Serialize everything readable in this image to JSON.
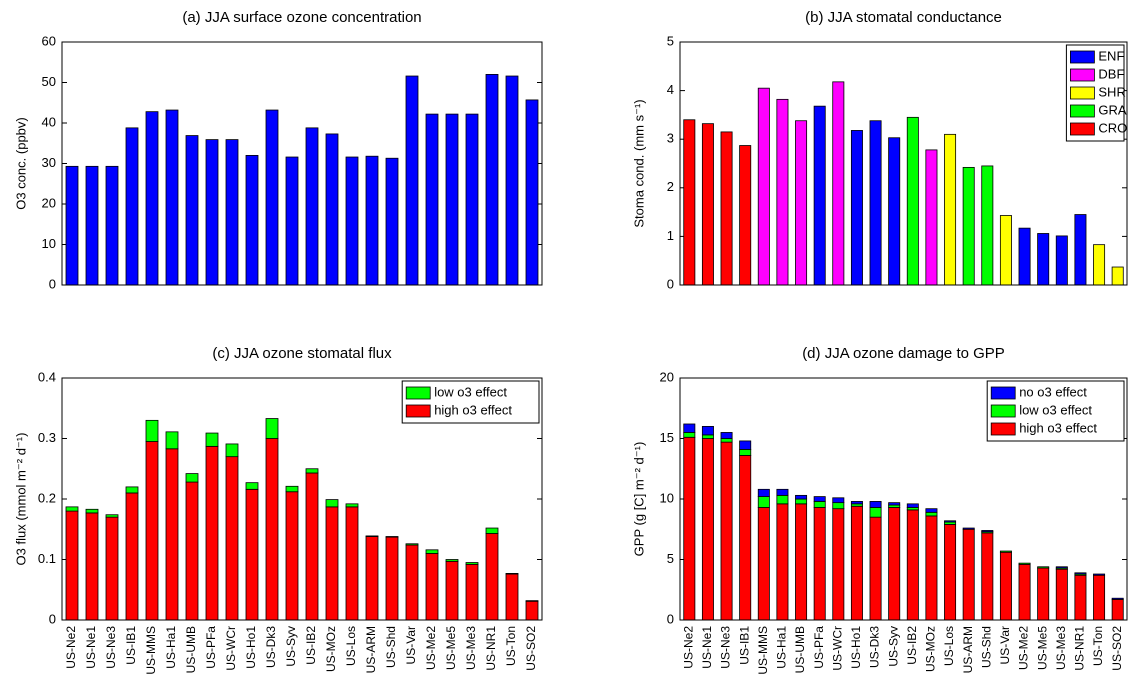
{
  "chart_data": [
    {
      "type": "bar",
      "title": "(a) JJA surface ozone concentration",
      "ylabel": "O3 conc. (ppbv)",
      "values": [
        29.3,
        29.3,
        29.3,
        38.8,
        42.8,
        43.2,
        36.9,
        35.9,
        35.9,
        32.0,
        43.2,
        31.6,
        38.8,
        37.3,
        31.6,
        31.8,
        31.3,
        51.6,
        42.2,
        42.2,
        42.2,
        52.0,
        51.6,
        45.7
      ],
      "color": "#0000ff",
      "ylim": [
        0,
        60
      ],
      "yticks": [
        0,
        10,
        20,
        30,
        40,
        50,
        60
      ]
    },
    {
      "type": "bar",
      "title": "(b) JJA stomatal conductance",
      "ylabel": "Stoma cond. (mm s⁻¹)",
      "legend": "upper right",
      "series": [
        {
          "name": "ENF",
          "color": "#0000ff",
          "values": [
            null,
            null,
            null,
            null,
            null,
            null,
            null,
            3.68,
            null,
            3.18,
            3.38,
            3.03,
            null,
            null,
            null,
            null,
            null,
            null,
            1.17,
            1.06,
            1.01,
            1.45,
            null,
            null
          ]
        },
        {
          "name": "DBF",
          "color": "#ff00ff",
          "values": [
            null,
            null,
            null,
            null,
            4.05,
            3.82,
            3.38,
            null,
            4.18,
            null,
            null,
            null,
            null,
            2.78,
            null,
            null,
            null,
            null,
            null,
            null,
            null,
            null,
            null,
            null
          ]
        },
        {
          "name": "SHR",
          "color": "#ffff00",
          "values": [
            null,
            null,
            null,
            null,
            null,
            null,
            null,
            null,
            null,
            null,
            null,
            null,
            null,
            null,
            3.1,
            null,
            null,
            1.43,
            null,
            null,
            null,
            null,
            0.83,
            0.37
          ]
        },
        {
          "name": "GRA",
          "color": "#00ff00",
          "values": [
            null,
            null,
            null,
            null,
            null,
            null,
            null,
            null,
            null,
            null,
            null,
            null,
            3.45,
            null,
            null,
            2.42,
            2.45,
            null,
            null,
            null,
            null,
            null,
            null,
            null
          ]
        },
        {
          "name": "CRO",
          "color": "#ff0000",
          "values": [
            3.4,
            3.32,
            3.15,
            2.87,
            null,
            null,
            null,
            null,
            null,
            null,
            null,
            null,
            null,
            null,
            null,
            null,
            null,
            null,
            null,
            null,
            null,
            null,
            null,
            null
          ]
        }
      ],
      "ylim": [
        0,
        5
      ],
      "yticks": [
        0,
        1,
        2,
        3,
        4,
        5
      ]
    },
    {
      "type": "bar",
      "stacked": true,
      "title": "(c) JJA ozone stomatal flux",
      "ylabel": "O3 flux (mmol m⁻² d⁻¹)",
      "legend": "upper right",
      "categories": [
        "US-Ne2",
        "US-Ne1",
        "US-Ne3",
        "US-IB1",
        "US-MMS",
        "US-Ha1",
        "US-UMB",
        "US-PFa",
        "US-WCr",
        "US-Ho1",
        "US-Dk3",
        "US-Syv",
        "US-IB2",
        "US-MOz",
        "US-Los",
        "US-ARM",
        "US-Shd",
        "US-Var",
        "US-Me2",
        "US-Me5",
        "US-Me3",
        "US-NR1",
        "US-Ton",
        "US-SO2"
      ],
      "series": [
        {
          "name": "low o3 effect",
          "color": "#00ff00",
          "values": [
            0.007,
            0.006,
            0.004,
            0.01,
            0.035,
            0.028,
            0.014,
            0.022,
            0.021,
            0.011,
            0.033,
            0.009,
            0.007,
            0.012,
            0.005,
            0.001,
            0.001,
            0.002,
            0.006,
            0.003,
            0.003,
            0.009,
            0.001,
            0.001
          ]
        },
        {
          "name": "high o3 effect",
          "color": "#ff0000",
          "values": [
            0.18,
            0.177,
            0.17,
            0.21,
            0.295,
            0.283,
            0.228,
            0.287,
            0.27,
            0.216,
            0.3,
            0.212,
            0.243,
            0.187,
            0.187,
            0.138,
            0.137,
            0.124,
            0.11,
            0.097,
            0.092,
            0.143,
            0.076,
            0.031
          ]
        }
      ],
      "ylim": [
        0,
        0.4
      ],
      "yticks": [
        0,
        0.1,
        0.2,
        0.3,
        0.4
      ]
    },
    {
      "type": "bar",
      "stacked": true,
      "title": "(d) JJA ozone damage to GPP",
      "ylabel": "GPP (g [C] m⁻² d⁻¹)",
      "legend": "upper right",
      "categories": [
        "US-Ne2",
        "US-Ne1",
        "US-Ne3",
        "US-IB1",
        "US-MMS",
        "US-Ha1",
        "US-UMB",
        "US-PFa",
        "US-WCr",
        "US-Ho1",
        "US-Dk3",
        "US-Syv",
        "US-IB2",
        "US-MOz",
        "US-Los",
        "US-ARM",
        "US-Shd",
        "US-Var",
        "US-Me2",
        "US-Me5",
        "US-Me3",
        "US-NR1",
        "US-Ton",
        "US-SO2"
      ],
      "series": [
        {
          "name": "no o3 effect",
          "color": "#0000ff",
          "values": [
            0.7,
            0.7,
            0.5,
            0.7,
            0.6,
            0.5,
            0.3,
            0.4,
            0.4,
            0.2,
            0.5,
            0.2,
            0.3,
            0.3,
            0.1,
            0.1,
            0.1,
            0,
            0,
            0,
            0.1,
            0.1,
            0.1,
            0.1
          ]
        },
        {
          "name": "low o3 effect",
          "color": "#00ff00",
          "values": [
            0.4,
            0.3,
            0.3,
            0.5,
            0.9,
            0.7,
            0.4,
            0.5,
            0.5,
            0.2,
            0.8,
            0.2,
            0.2,
            0.3,
            0.2,
            0,
            0.1,
            0.1,
            0.1,
            0.1,
            0.1,
            0.1,
            0,
            0
          ]
        },
        {
          "name": "high o3 effect",
          "color": "#ff0000",
          "values": [
            15.1,
            15.0,
            14.7,
            13.6,
            9.3,
            9.6,
            9.6,
            9.3,
            9.2,
            9.4,
            8.5,
            9.3,
            9.1,
            8.6,
            7.9,
            7.5,
            7.2,
            5.6,
            4.6,
            4.3,
            4.2,
            3.7,
            3.7,
            1.7
          ]
        }
      ],
      "ylim": [
        0,
        20
      ],
      "yticks": [
        0,
        5,
        10,
        15,
        20
      ]
    }
  ]
}
